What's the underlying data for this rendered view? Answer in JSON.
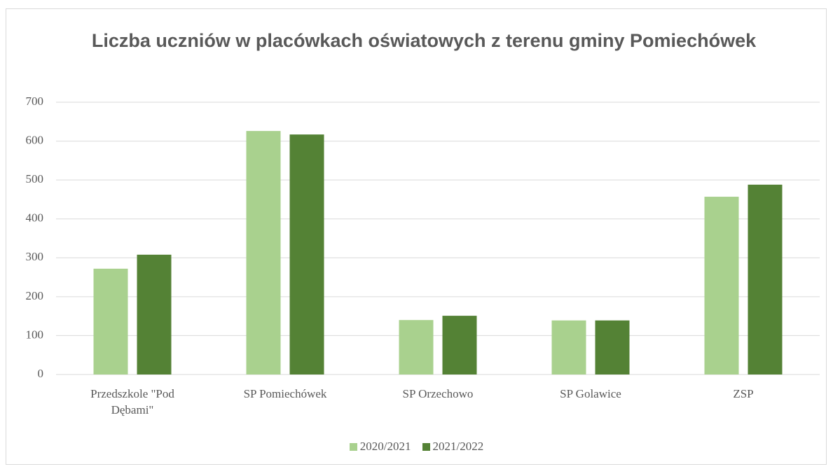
{
  "chart_data": {
    "type": "bar",
    "title": "Liczba uczniów w placówkach oświatowych z terenu gminy Pomiechówek",
    "categories": [
      "Przedszkole \"Pod Dębami\"",
      "SP Pomiechówek",
      "SP Orzechowo",
      "SP Golawice",
      "ZSP"
    ],
    "series": [
      {
        "name": "2020/2021",
        "color": "#a9d18e",
        "values": [
          272,
          626,
          140,
          139,
          457
        ]
      },
      {
        "name": "2021/2022",
        "color": "#548235",
        "values": [
          308,
          617,
          151,
          139,
          488
        ]
      }
    ],
    "ylim": [
      0,
      700
    ],
    "yticks": [
      0,
      100,
      200,
      300,
      400,
      500,
      600,
      700
    ],
    "grid": true,
    "legend": "bottom"
  }
}
